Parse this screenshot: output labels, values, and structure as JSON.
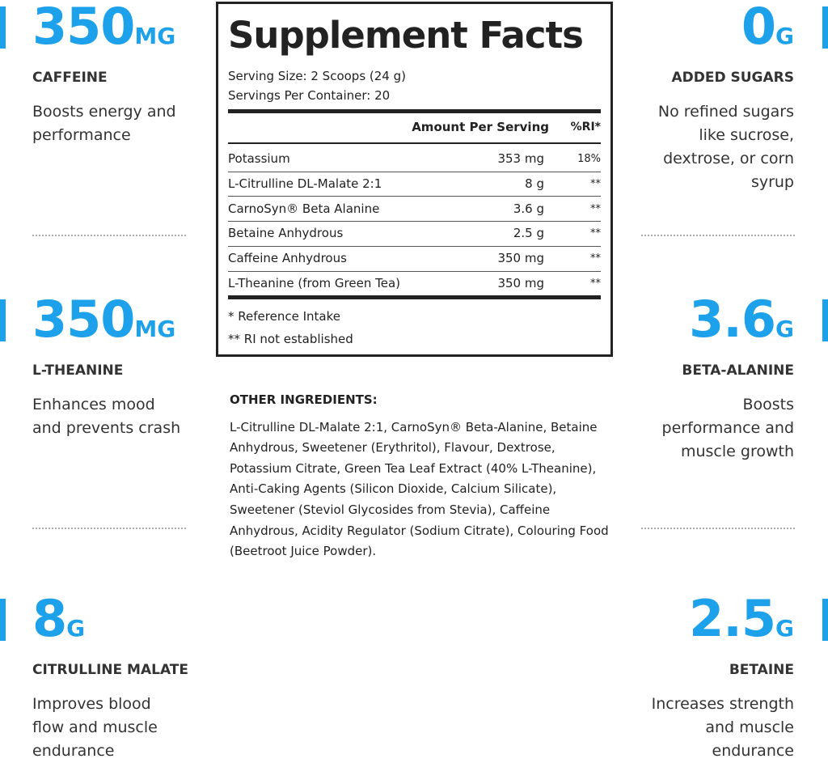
{
  "left": [
    {
      "value": "350",
      "unit": "MG",
      "name": "CAFFEINE",
      "description": "Boosts energy and performance"
    },
    {
      "value": "350",
      "unit": "MG",
      "name": "L-THEANINE",
      "description": "Enhances mood and prevents crash"
    },
    {
      "value": "8",
      "unit": "G",
      "name": "CITRULLINE MALATE",
      "description": "Improves blood flow and muscle endurance"
    }
  ],
  "right": [
    {
      "value": "0",
      "unit": "G",
      "name": "ADDED SUGARS",
      "description": "No refined sugars like sucrose, dextrose, or corn syrup"
    },
    {
      "value": "3.6",
      "unit": "G",
      "name": "BETA-ALANINE",
      "description": "Boosts performance and muscle growth"
    },
    {
      "value": "2.5",
      "unit": "G",
      "name": "BETAINE",
      "description": "Increases strength and muscle endurance"
    }
  ],
  "facts": {
    "title": "Supplement Facts",
    "serving_size": "Serving Size: 2 Scoops (24 g)",
    "servings_per_container": "Servings Per Container: 20",
    "header": [
      "Amount Per Serving",
      "%RI*"
    ],
    "rows": [
      [
        "Potassium",
        "353 mg",
        "18%"
      ],
      [
        "L-Citrulline DL-Malate 2:1",
        "8 g",
        "**"
      ],
      [
        "CarnoSyn® Beta Alanine",
        "3.6 g",
        "**"
      ],
      [
        "Betaine Anhydrous",
        "2.5 g",
        "**"
      ],
      [
        "Caffeine Anhydrous",
        "350 mg",
        "**"
      ],
      [
        "L-Theanine (from Green Tea)",
        "350 mg",
        "**"
      ]
    ],
    "footnotes": [
      "* Reference Intake",
      "** RI not established"
    ]
  },
  "other_ingredients": {
    "title": "OTHER INGREDIENTS:",
    "text": "L-Citrulline DL-Malate 2:1, CarnoSyn® Beta-Alanine, Betaine Anhydrous, Sweetener (Erythritol), Flavour, Dextrose, Potassium Citrate, Green Tea Leaf Extract (40% L-Theanine), Anti-Caking Agents (Silicon Dioxide, Calcium Silicate), Sweetener (Steviol Glycosides from Stevia), Caffeine Anhydrous, Acidity Regulator (Sodium Citrate), Colouring Food (Beetroot Juice Powder)."
  }
}
